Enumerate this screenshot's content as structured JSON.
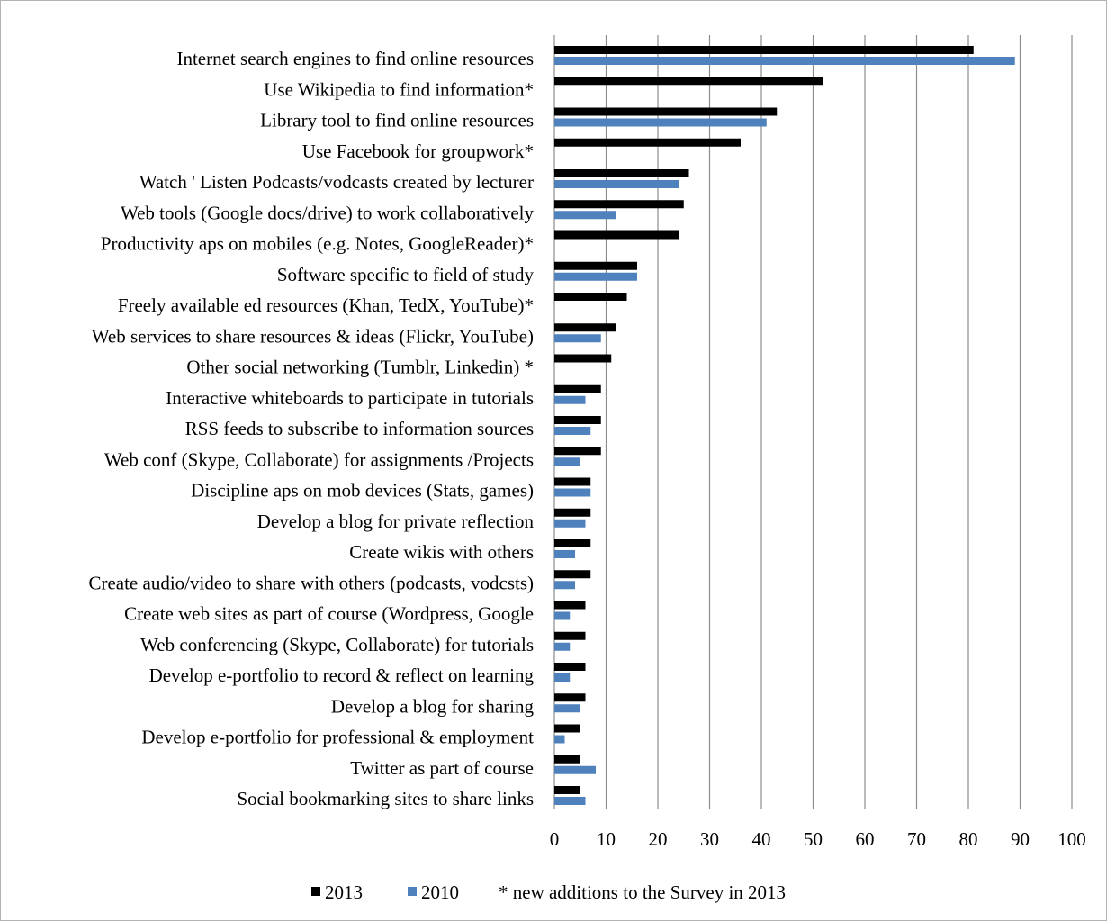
{
  "chart_data": {
    "type": "bar",
    "orientation": "horizontal",
    "categories": [
      "Internet search engines to find online resources ",
      "Use Wikipedia  to find information*",
      "Library tool to find online resources",
      "Use Facebook for groupwork*",
      "Watch ' Listen Podcasts/vodcasts created by lecturer",
      "Web tools (Google docs/drive) to work collaboratively",
      "Productivity aps on mobiles (e.g. Notes, GoogleReader)*",
      "Software specific to field of study ",
      "Freely available ed resources (Khan, TedX, YouTube)*",
      "Web services to share resources & ideas (Flickr, YouTube)",
      "Other social networking (Tumblr, Linkedin) *",
      "Interactive whiteboards to participate in tutorials ",
      "RSS feeds to subscribe to information sources",
      "Web conf (Skype, Collaborate) for assignments /Projects ",
      "Discipline aps on mob devices (Stats, games) ",
      "Develop a blog for private reflection ",
      "Create wikis with others ",
      "Create audio/video to share with others (podcasts, vodcsts)",
      "Create web sites as part of course (Wordpress, Google",
      "Web conferencing (Skype, Collaborate) for tutorials ",
      "Develop e-portfolio to record & reflect on learning",
      "Develop a blog for sharing ",
      "Develop e-portfolio for professional & employment ",
      "Twitter as part of course",
      "Social bookmarking sites to share links "
    ],
    "series": [
      {
        "name": "2013",
        "color": "#000000",
        "values": [
          81,
          52,
          43,
          36,
          26,
          25,
          24,
          16,
          14,
          12,
          11,
          9,
          9,
          9,
          7,
          7,
          7,
          7,
          6,
          6,
          6,
          6,
          5,
          5,
          5
        ]
      },
      {
        "name": "2010",
        "color": "#4f81bd",
        "values": [
          89,
          null,
          41,
          null,
          24,
          12,
          null,
          16,
          null,
          9,
          null,
          6,
          7,
          5,
          7,
          6,
          4,
          4,
          3,
          3,
          3,
          5,
          2,
          8,
          6
        ]
      }
    ],
    "xlim": [
      0,
      100
    ],
    "xticks": [
      "0",
      "10",
      "20",
      "30",
      "40",
      "50",
      "60",
      "70",
      "80",
      "90",
      "100"
    ],
    "grid": "vertical",
    "legend_position": "bottom",
    "legend_note": "* new additions to the Survey in 2013",
    "xlabel": "",
    "ylabel": "",
    "title": ""
  }
}
